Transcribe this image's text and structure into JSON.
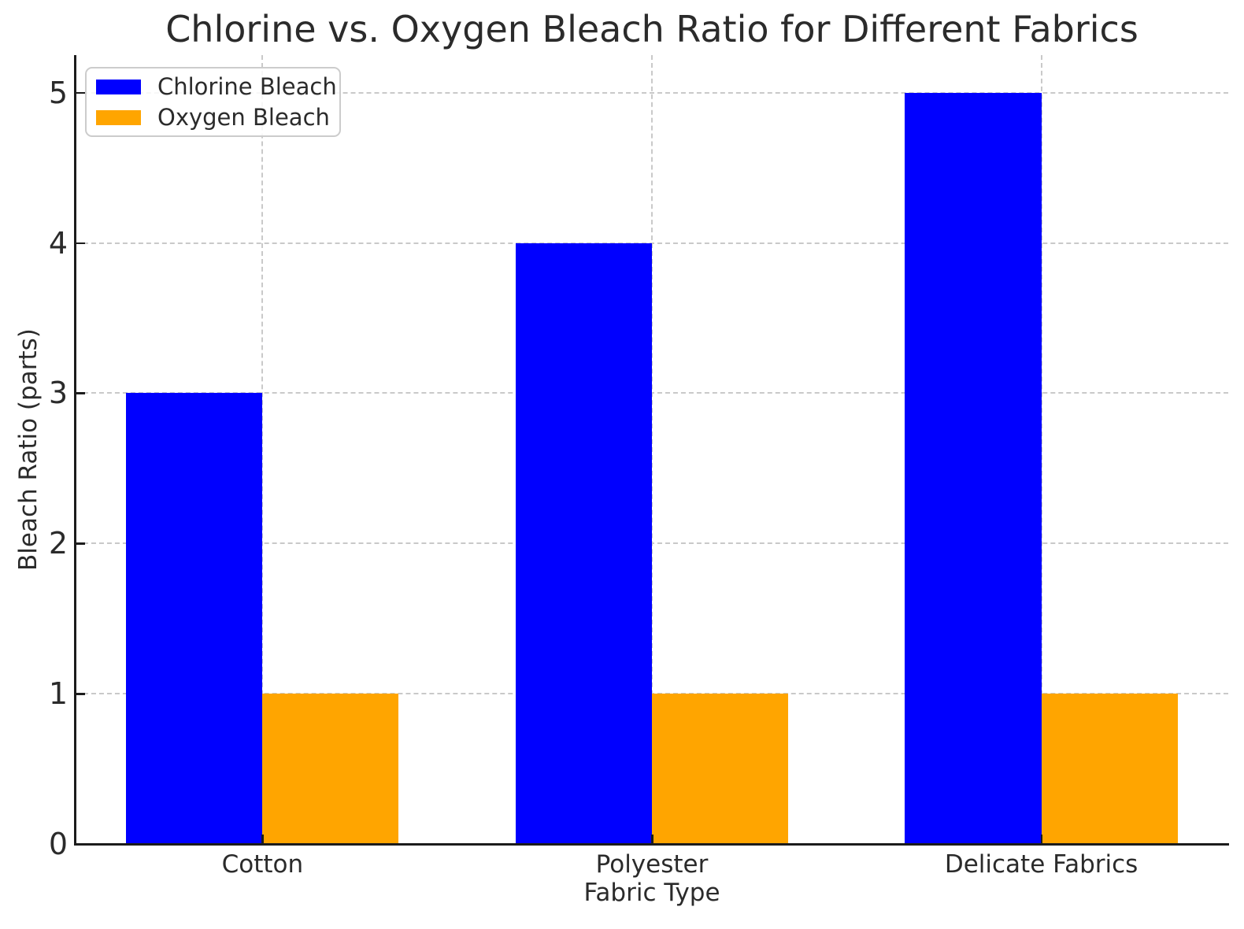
{
  "chart_data": {
    "type": "bar",
    "title": "Chlorine vs. Oxygen Bleach Ratio for Different Fabrics",
    "xlabel": "Fabric Type",
    "ylabel": "Bleach Ratio (parts)",
    "categories": [
      "Cotton",
      "Polyester",
      "Delicate Fabrics"
    ],
    "series": [
      {
        "name": "Chlorine Bleach",
        "color": "#0000ff",
        "values": [
          3,
          4,
          5
        ]
      },
      {
        "name": "Oxygen Bleach",
        "color": "#ffa500",
        "values": [
          1,
          1,
          1
        ]
      }
    ],
    "yticks": [
      0,
      1,
      2,
      3,
      4,
      5
    ],
    "ylim": [
      0,
      5.25
    ],
    "grid": true,
    "grid_style": "dashed",
    "grid_color": "#c9c9c9",
    "text_color": "#2b2b2b",
    "spine_color": "#1c1c1c",
    "legend_position": "upper left"
  }
}
